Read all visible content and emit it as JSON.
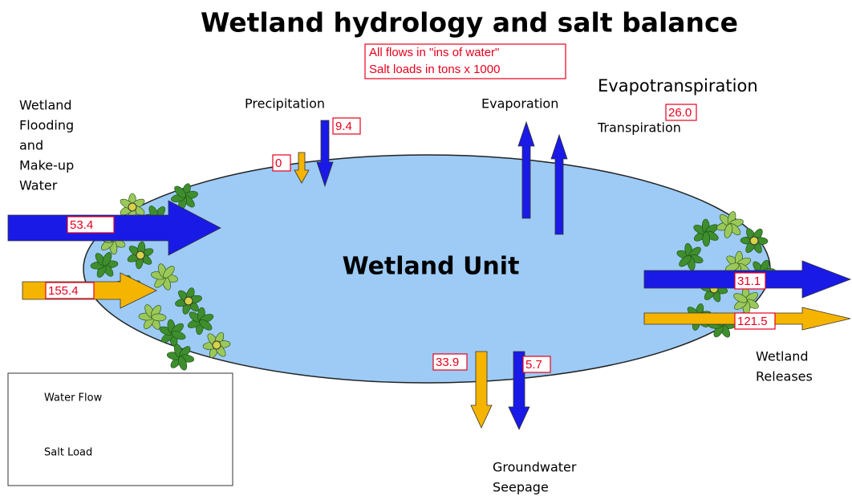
{
  "title": "Wetland hydrology and salt balance",
  "note": [
    "All flows in \"ins of water\"",
    "Salt loads in tons x 1000"
  ],
  "unit_label": "Wetland Unit",
  "inflow": {
    "label": [
      "Wetland",
      "Flooding",
      "and",
      "Make-up",
      "Water"
    ],
    "water": "53.4",
    "salt": "155.4"
  },
  "precipitation": {
    "label": "Precipitation",
    "water": "9.4",
    "salt": "0"
  },
  "evaporation": {
    "label": "Evaporation"
  },
  "evapotranspiration": {
    "label": "Evapotranspiration",
    "water": "26.0",
    "sublabel": "Transpiration"
  },
  "releases": {
    "label": [
      "Wetland",
      "Releases"
    ],
    "water": "31.1",
    "salt": "121.5"
  },
  "seepage": {
    "label": [
      "Groundwater",
      "Seepage"
    ],
    "water": "5.7",
    "salt": "33.9"
  },
  "legend": {
    "water": "Water Flow",
    "salt": "Salt Load"
  }
}
